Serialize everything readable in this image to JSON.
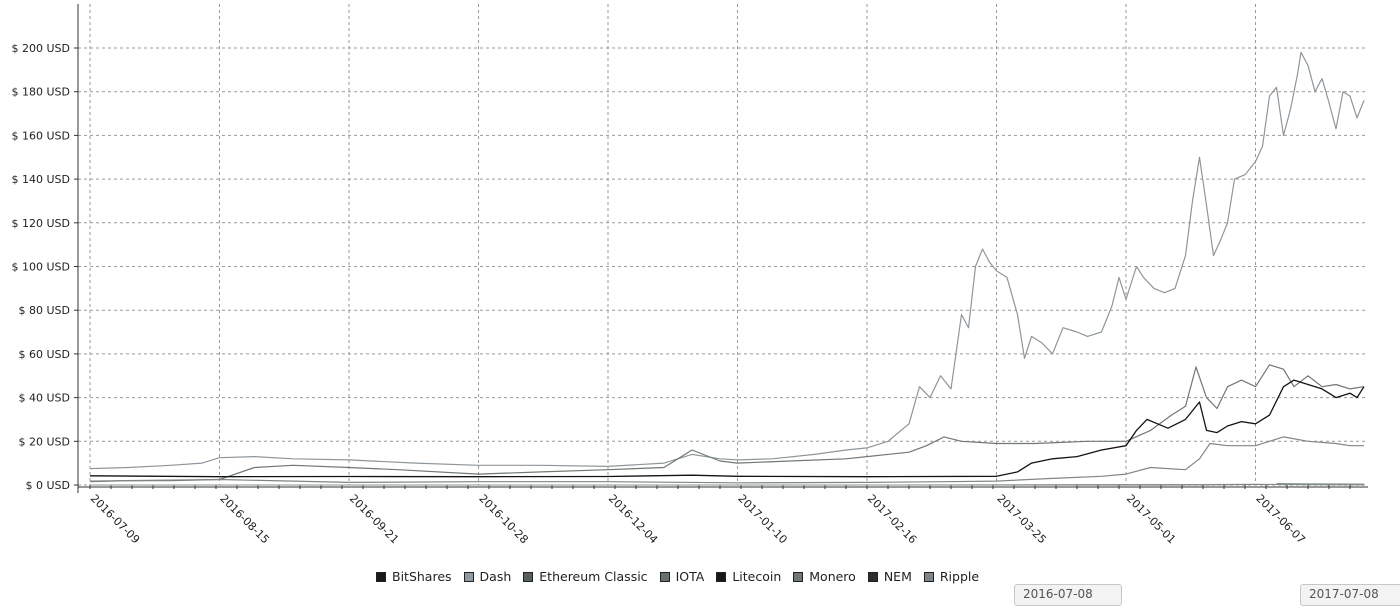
{
  "chart_data": {
    "type": "line",
    "x_axis": {
      "type": "date",
      "range": [
        "2016-07-09",
        "2017-07-08"
      ],
      "ticks": [
        "2016-07-09",
        "2016-08-15",
        "2016-09-21",
        "2016-10-28",
        "2016-12-04",
        "2017-01-10",
        "2017-02-16",
        "2017-03-25",
        "2017-05-01",
        "2017-06-07"
      ]
    },
    "y_axis": {
      "ylim": [
        0,
        210
      ],
      "ticks": [
        0,
        20,
        40,
        60,
        80,
        100,
        120,
        140,
        160,
        180,
        200
      ],
      "tick_labels": [
        "$ 0 USD",
        "$ 20 USD",
        "$ 40 USD",
        "$ 60 USD",
        "$ 80 USD",
        "$ 100 USD",
        "$ 120 USD",
        "$ 140 USD",
        "$ 160 USD",
        "$ 180 USD",
        "$ 200 USD"
      ]
    },
    "grid": true,
    "legend_position": "bottom",
    "series": [
      {
        "name": "BitShares",
        "color": "#1a1a1a",
        "stroke": "#444444",
        "width": 1,
        "points": [
          [
            "2016-07-09",
            0.005
          ],
          [
            "2016-10-28",
            0.004
          ],
          [
            "2017-02-16",
            0.004
          ],
          [
            "2017-05-01",
            0.04
          ],
          [
            "2017-06-07",
            0.25
          ],
          [
            "2017-07-08",
            0.2
          ]
        ]
      },
      {
        "name": "Dash",
        "color": "#8e9aa4",
        "stroke": "#8e969c",
        "width": 1.2,
        "points": [
          [
            "2016-07-09",
            7.5
          ],
          [
            "2016-07-20",
            8
          ],
          [
            "2016-08-01",
            9
          ],
          [
            "2016-08-10",
            10
          ],
          [
            "2016-08-15",
            12.5
          ],
          [
            "2016-08-25",
            13
          ],
          [
            "2016-09-05",
            12
          ],
          [
            "2016-09-21",
            11.5
          ],
          [
            "2016-10-10",
            10
          ],
          [
            "2016-10-28",
            9
          ],
          [
            "2016-11-15",
            9
          ],
          [
            "2016-12-04",
            8.5
          ],
          [
            "2016-12-20",
            10
          ],
          [
            "2016-12-28",
            14
          ],
          [
            "2017-01-05",
            12
          ],
          [
            "2017-01-10",
            11.5
          ],
          [
            "2017-01-20",
            12
          ],
          [
            "2017-02-01",
            14
          ],
          [
            "2017-02-10",
            16
          ],
          [
            "2017-02-16",
            17
          ],
          [
            "2017-02-22",
            20
          ],
          [
            "2017-02-28",
            28
          ],
          [
            "2017-03-03",
            45
          ],
          [
            "2017-03-06",
            40
          ],
          [
            "2017-03-09",
            50
          ],
          [
            "2017-03-12",
            44
          ],
          [
            "2017-03-15",
            78
          ],
          [
            "2017-03-17",
            72
          ],
          [
            "2017-03-19",
            100
          ],
          [
            "2017-03-21",
            108
          ],
          [
            "2017-03-23",
            102
          ],
          [
            "2017-03-25",
            98
          ],
          [
            "2017-03-28",
            95
          ],
          [
            "2017-03-31",
            78
          ],
          [
            "2017-04-02",
            58
          ],
          [
            "2017-04-04",
            68
          ],
          [
            "2017-04-07",
            65
          ],
          [
            "2017-04-10",
            60
          ],
          [
            "2017-04-13",
            72
          ],
          [
            "2017-04-17",
            70
          ],
          [
            "2017-04-20",
            68
          ],
          [
            "2017-04-24",
            70
          ],
          [
            "2017-04-27",
            82
          ],
          [
            "2017-04-29",
            95
          ],
          [
            "2017-05-01",
            85
          ],
          [
            "2017-05-04",
            100
          ],
          [
            "2017-05-06",
            95
          ],
          [
            "2017-05-09",
            90
          ],
          [
            "2017-05-12",
            88
          ],
          [
            "2017-05-15",
            90
          ],
          [
            "2017-05-18",
            105
          ],
          [
            "2017-05-20",
            130
          ],
          [
            "2017-05-22",
            150
          ],
          [
            "2017-05-24",
            128
          ],
          [
            "2017-05-26",
            105
          ],
          [
            "2017-05-28",
            112
          ],
          [
            "2017-05-30",
            120
          ],
          [
            "2017-06-01",
            140
          ],
          [
            "2017-06-04",
            142
          ],
          [
            "2017-06-07",
            148
          ],
          [
            "2017-06-09",
            155
          ],
          [
            "2017-06-11",
            178
          ],
          [
            "2017-06-13",
            182
          ],
          [
            "2017-06-15",
            160
          ],
          [
            "2017-06-17",
            172
          ],
          [
            "2017-06-19",
            188
          ],
          [
            "2017-06-20",
            198
          ],
          [
            "2017-06-22",
            192
          ],
          [
            "2017-06-24",
            180
          ],
          [
            "2017-06-26",
            186
          ],
          [
            "2017-06-28",
            175
          ],
          [
            "2017-06-30",
            163
          ],
          [
            "2017-07-02",
            180
          ],
          [
            "2017-07-04",
            178
          ],
          [
            "2017-07-06",
            168
          ],
          [
            "2017-07-08",
            176
          ]
        ]
      },
      {
        "name": "Ethereum Classic",
        "color": "#55605a",
        "stroke": "#6f7873",
        "width": 1.2,
        "points": [
          [
            "2016-07-09",
            1.5
          ],
          [
            "2016-07-20",
            2
          ],
          [
            "2016-08-01",
            2
          ],
          [
            "2016-08-15",
            2.5
          ],
          [
            "2016-08-25",
            8
          ],
          [
            "2016-09-05",
            9
          ],
          [
            "2016-09-21",
            8
          ],
          [
            "2016-10-05",
            7
          ],
          [
            "2016-10-28",
            5
          ],
          [
            "2016-11-15",
            6
          ],
          [
            "2016-12-04",
            7
          ],
          [
            "2016-12-20",
            8
          ],
          [
            "2016-12-28",
            16
          ],
          [
            "2017-01-05",
            11
          ],
          [
            "2017-01-10",
            10
          ],
          [
            "2017-01-25",
            11
          ],
          [
            "2017-02-10",
            12
          ],
          [
            "2017-02-16",
            13
          ],
          [
            "2017-02-28",
            15
          ],
          [
            "2017-03-05",
            18
          ],
          [
            "2017-03-10",
            22
          ],
          [
            "2017-03-15",
            20
          ],
          [
            "2017-03-25",
            19
          ],
          [
            "2017-04-05",
            19
          ],
          [
            "2017-04-20",
            20
          ],
          [
            "2017-05-01",
            20
          ],
          [
            "2017-05-08",
            25
          ],
          [
            "2017-05-14",
            32
          ],
          [
            "2017-05-18",
            36
          ],
          [
            "2017-05-21",
            54
          ],
          [
            "2017-05-24",
            40
          ],
          [
            "2017-05-27",
            35
          ],
          [
            "2017-05-30",
            45
          ],
          [
            "2017-06-03",
            48
          ],
          [
            "2017-06-07",
            45
          ],
          [
            "2017-06-11",
            55
          ],
          [
            "2017-06-15",
            53
          ],
          [
            "2017-06-18",
            45
          ],
          [
            "2017-06-22",
            50
          ],
          [
            "2017-06-26",
            45
          ],
          [
            "2017-06-30",
            46
          ],
          [
            "2017-07-04",
            44
          ],
          [
            "2017-07-08",
            45
          ]
        ]
      },
      {
        "name": "IOTA",
        "color": "#66716b",
        "stroke": "#6e7872",
        "width": 1.2,
        "points": [
          [
            "2017-06-13",
            0.6
          ],
          [
            "2017-06-20",
            0.45
          ],
          [
            "2017-07-01",
            0.4
          ],
          [
            "2017-07-08",
            0.35
          ]
        ]
      },
      {
        "name": "Litecoin",
        "color": "#1a1416",
        "stroke": "#151214",
        "width": 1.3,
        "points": [
          [
            "2016-07-09",
            4.2
          ],
          [
            "2016-08-15",
            3.8
          ],
          [
            "2016-09-21",
            3.9
          ],
          [
            "2016-10-28",
            3.8
          ],
          [
            "2016-12-04",
            3.9
          ],
          [
            "2016-12-28",
            4.5
          ],
          [
            "2017-01-10",
            4.0
          ],
          [
            "2017-02-16",
            3.8
          ],
          [
            "2017-03-25",
            4.0
          ],
          [
            "2017-03-31",
            6
          ],
          [
            "2017-04-04",
            10
          ],
          [
            "2017-04-10",
            12
          ],
          [
            "2017-04-17",
            13
          ],
          [
            "2017-04-24",
            16
          ],
          [
            "2017-05-01",
            18
          ],
          [
            "2017-05-04",
            25
          ],
          [
            "2017-05-07",
            30
          ],
          [
            "2017-05-10",
            28
          ],
          [
            "2017-05-13",
            26
          ],
          [
            "2017-05-18",
            30
          ],
          [
            "2017-05-22",
            38
          ],
          [
            "2017-05-24",
            25
          ],
          [
            "2017-05-27",
            24
          ],
          [
            "2017-05-30",
            27
          ],
          [
            "2017-06-03",
            29
          ],
          [
            "2017-06-07",
            28
          ],
          [
            "2017-06-11",
            32
          ],
          [
            "2017-06-15",
            45
          ],
          [
            "2017-06-18",
            48
          ],
          [
            "2017-06-22",
            46
          ],
          [
            "2017-06-26",
            44
          ],
          [
            "2017-06-30",
            40
          ],
          [
            "2017-07-04",
            42
          ],
          [
            "2017-07-06",
            40
          ],
          [
            "2017-07-08",
            45
          ]
        ]
      },
      {
        "name": "Monero",
        "color": "#6f786f",
        "stroke": "#7f8780",
        "width": 1.2,
        "points": [
          [
            "2016-07-09",
            1.8
          ],
          [
            "2016-08-15",
            2.5
          ],
          [
            "2016-09-21",
            1.2
          ],
          [
            "2016-10-28",
            1.5
          ],
          [
            "2016-12-04",
            1.5
          ],
          [
            "2017-01-10",
            1.0
          ],
          [
            "2017-02-16",
            1.2
          ],
          [
            "2017-03-10",
            1.5
          ],
          [
            "2017-03-25",
            1.8
          ],
          [
            "2017-04-10",
            3
          ],
          [
            "2017-04-24",
            4
          ],
          [
            "2017-05-01",
            5
          ],
          [
            "2017-05-08",
            8
          ],
          [
            "2017-05-18",
            7
          ],
          [
            "2017-05-22",
            12
          ],
          [
            "2017-05-25",
            19
          ],
          [
            "2017-05-30",
            18
          ],
          [
            "2017-06-07",
            18
          ],
          [
            "2017-06-11",
            20
          ],
          [
            "2017-06-15",
            22
          ],
          [
            "2017-06-22",
            20
          ],
          [
            "2017-06-30",
            19
          ],
          [
            "2017-07-04",
            18
          ],
          [
            "2017-07-08",
            18
          ]
        ]
      },
      {
        "name": "NEM",
        "color": "#2e2e2e",
        "stroke": "#4d4d4d",
        "width": 1,
        "points": [
          [
            "2016-07-09",
            0.01
          ],
          [
            "2017-02-16",
            0.01
          ],
          [
            "2017-05-01",
            0.1
          ],
          [
            "2017-06-07",
            0.25
          ],
          [
            "2017-07-08",
            0.2
          ]
        ]
      },
      {
        "name": "Ripple",
        "color": "#7c8589",
        "stroke": "#8a9296",
        "width": 1,
        "points": [
          [
            "2016-07-09",
            0.01
          ],
          [
            "2017-02-16",
            0.01
          ],
          [
            "2017-05-01",
            0.08
          ],
          [
            "2017-06-07",
            0.3
          ],
          [
            "2017-07-08",
            0.26
          ]
        ]
      }
    ]
  },
  "range_selector": {
    "start_partial": "2016-07-08",
    "end_partial": "2017-07-08"
  }
}
